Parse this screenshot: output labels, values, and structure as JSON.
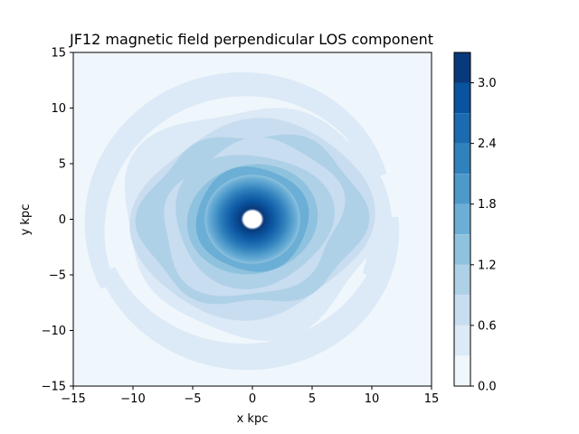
{
  "chart_data": {
    "type": "heatmap",
    "subtype": "filled-contour",
    "title": "JF12 magnetic field perpendicular LOS component",
    "xlabel": "x kpc",
    "ylabel": "y kpc",
    "xlim": [
      -15,
      15
    ],
    "ylim": [
      -15,
      15
    ],
    "xticks": [
      "−15",
      "−10",
      "−5",
      "0",
      "5",
      "10",
      "15"
    ],
    "yticks": [
      "−15",
      "−10",
      "−5",
      "0",
      "5",
      "10",
      "15"
    ],
    "xtick_values": [
      -15,
      -10,
      -5,
      0,
      5,
      10,
      15
    ],
    "ytick_values": [
      -15,
      -10,
      -5,
      0,
      5,
      10,
      15
    ],
    "colormap": "Blues",
    "colorbar": {
      "ticks": [
        "0.0",
        "0.6",
        "1.2",
        "1.8",
        "2.4",
        "3.0"
      ],
      "tick_values": [
        0.0,
        0.6,
        1.2,
        1.8,
        2.4,
        3.0
      ],
      "levels": [
        0.0,
        0.3,
        0.6,
        0.9,
        1.2,
        1.5,
        1.8,
        2.1,
        2.4,
        2.7,
        3.0,
        3.3
      ],
      "colors": [
        "#eff6fc",
        "#dce9f6",
        "#c9ddf0",
        "#afd1e7",
        "#8fc2de",
        "#6baed6",
        "#4d99ca",
        "#3181bd",
        "#1c6ab0",
        "#0a539e",
        "#083a7b"
      ]
    },
    "features": {
      "core_ring_radius": 3.0,
      "core_peak": 3.3,
      "core_hole_radius": 0.6,
      "disk_radius": 5.0,
      "disk_value": 1.5,
      "spiral_arm_value": 1.1,
      "outer_arm_value": 0.45
    }
  }
}
